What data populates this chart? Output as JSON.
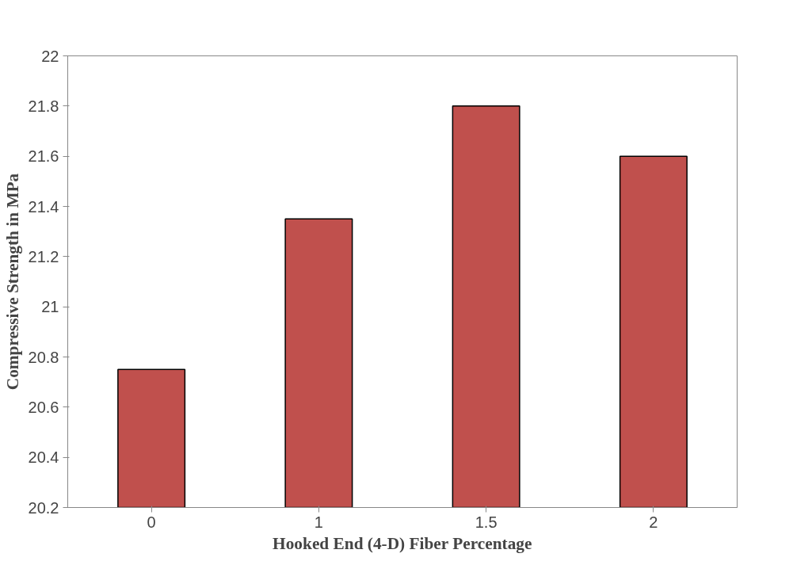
{
  "chart_data": {
    "type": "bar",
    "xlabel": "Hooked End (4-D) Fiber Percentage",
    "ylabel": "Compressive Strength in MPa",
    "categories": [
      "0",
      "1",
      "1.5",
      "2"
    ],
    "values": [
      20.75,
      21.35,
      21.8,
      21.6
    ],
    "color": "#c0504d",
    "ylim": [
      20.2,
      22
    ],
    "yticks": [
      20.2,
      20.4,
      20.6,
      20.8,
      21,
      21.2,
      21.4,
      21.6,
      21.8,
      22
    ],
    "grid": false
  }
}
